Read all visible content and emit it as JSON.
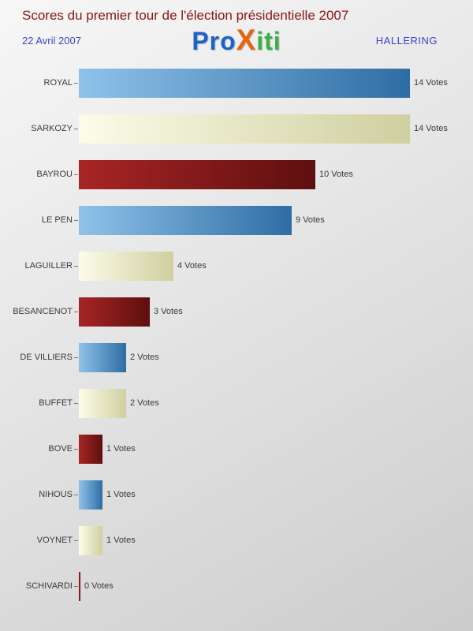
{
  "header": {
    "title": "Scores du premier tour de l'élection présidentielle 2007",
    "date": "22 Avril 2007",
    "location": "HALLERING",
    "logo_letters": [
      {
        "char": "P",
        "color": "#1d63c8"
      },
      {
        "char": "r",
        "color": "#1d63c8"
      },
      {
        "char": "o",
        "color": "#1d63c8"
      },
      {
        "char": "X",
        "color": "#e8650d"
      },
      {
        "char": "i",
        "color": "#3fae49"
      },
      {
        "char": "t",
        "color": "#3fae49"
      },
      {
        "char": "i",
        "color": "#3fae49"
      }
    ]
  },
  "chart_data": {
    "type": "bar",
    "orientation": "horizontal",
    "title": "Scores du premier tour de l'élection présidentielle 2007",
    "categories": [
      "ROYAL",
      "SARKOZY",
      "BAYROU",
      "LE PEN",
      "LAGUILLER",
      "BESANCENOT",
      "DE VILLIERS",
      "BUFFET",
      "BOVE",
      "NIHOUS",
      "VOYNET",
      "SCHIVARDI"
    ],
    "values": [
      14,
      14,
      10,
      9,
      4,
      3,
      2,
      2,
      1,
      1,
      1,
      0
    ],
    "value_labels": [
      "14 Votes",
      "14 Votes",
      "10 Votes",
      "9 Votes",
      "4 Votes",
      "3 Votes",
      "2 Votes",
      "2 Votes",
      "1 Votes",
      "1 Votes",
      "1 Votes",
      "0 Votes"
    ],
    "xlim": [
      0,
      14
    ],
    "grid": false,
    "legend": false,
    "bar_colors": [
      "blue",
      "cream",
      "red",
      "blue",
      "cream",
      "red",
      "blue",
      "cream",
      "red",
      "blue",
      "cream",
      "red"
    ],
    "palette": {
      "blue": [
        "#8fc2e9",
        "#2e6da4"
      ],
      "cream": [
        "#fcfce9",
        "#cfcfa0"
      ],
      "red": [
        "#a82525",
        "#5e0f0f"
      ]
    }
  }
}
